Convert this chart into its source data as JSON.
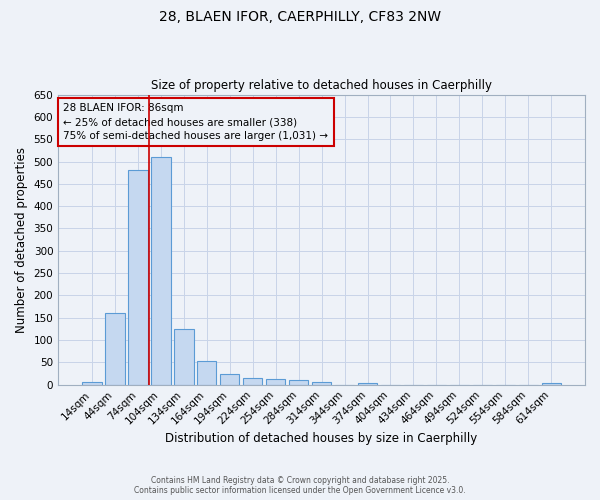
{
  "title_line1": "28, BLAEN IFOR, CAERPHILLY, CF83 2NW",
  "title_line2": "Size of property relative to detached houses in Caerphilly",
  "xlabel": "Distribution of detached houses by size in Caerphilly",
  "ylabel": "Number of detached properties",
  "categories": [
    "14sqm",
    "44sqm",
    "74sqm",
    "104sqm",
    "134sqm",
    "164sqm",
    "194sqm",
    "224sqm",
    "254sqm",
    "284sqm",
    "314sqm",
    "344sqm",
    "374sqm",
    "404sqm",
    "434sqm",
    "464sqm",
    "494sqm",
    "524sqm",
    "554sqm",
    "584sqm",
    "614sqm"
  ],
  "values": [
    5,
    160,
    480,
    510,
    125,
    53,
    23,
    15,
    12,
    10,
    6,
    0,
    3,
    0,
    0,
    0,
    0,
    0,
    0,
    0,
    3
  ],
  "bar_color": "#c5d8f0",
  "bar_edge_color": "#5b9bd5",
  "grid_color": "#c8d4e8",
  "background_color": "#eef2f8",
  "vline_color": "#cc0000",
  "vline_x": 2.5,
  "annotation_text": "28 BLAEN IFOR: 86sqm\n← 25% of detached houses are smaller (338)\n75% of semi-detached houses are larger (1,031) →",
  "annotation_box_edge": "#cc0000",
  "ylim": [
    0,
    650
  ],
  "yticks": [
    0,
    50,
    100,
    150,
    200,
    250,
    300,
    350,
    400,
    450,
    500,
    550,
    600,
    650
  ],
  "footer_line1": "Contains HM Land Registry data © Crown copyright and database right 2025.",
  "footer_line2": "Contains public sector information licensed under the Open Government Licence v3.0.",
  "figsize": [
    6.0,
    5.0
  ],
  "dpi": 100
}
